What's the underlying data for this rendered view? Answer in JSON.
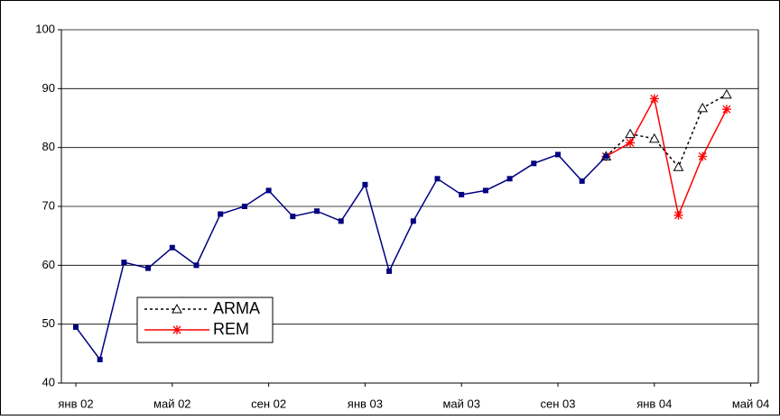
{
  "chart_data": {
    "type": "line",
    "categories": [
      "янв 02",
      null,
      null,
      null,
      "май 02",
      null,
      null,
      null,
      "сен 02",
      null,
      null,
      null,
      "янв 03",
      null,
      null,
      null,
      "май 03",
      null,
      null,
      null,
      "сен 03",
      null,
      null,
      null,
      "янв 04",
      null,
      null,
      null,
      "май 04"
    ],
    "series": [
      {
        "color": "#000080",
        "marker": "dot",
        "values": [
          49.5,
          44,
          60.5,
          59.5,
          63,
          60,
          68.7,
          70,
          72.7,
          68.3,
          69.2,
          67.5,
          73.7,
          59,
          67.5,
          74.7,
          72,
          72.7,
          74.7,
          77.3,
          78.8,
          74.3,
          78.5,
          null,
          null,
          null,
          null,
          null,
          null
        ]
      },
      {
        "name": "ARMA",
        "color": "#000000",
        "dash": true,
        "marker": "triangle",
        "values": [
          null,
          null,
          null,
          null,
          null,
          null,
          null,
          null,
          null,
          null,
          null,
          null,
          null,
          null,
          null,
          null,
          null,
          null,
          null,
          null,
          null,
          null,
          78.5,
          82.3,
          81.5,
          76.7,
          86.7,
          89,
          null
        ]
      },
      {
        "name": "REM",
        "color": "#ff0000",
        "dash": false,
        "marker": "star",
        "values": [
          null,
          null,
          null,
          null,
          null,
          null,
          null,
          null,
          null,
          null,
          null,
          null,
          null,
          null,
          null,
          null,
          null,
          null,
          null,
          null,
          null,
          null,
          78.5,
          80.8,
          88.3,
          68.5,
          78.5,
          86.5,
          null
        ]
      }
    ],
    "ylim": [
      40,
      100
    ],
    "yticks": [
      40,
      50,
      60,
      70,
      80,
      90,
      100
    ],
    "grid": true,
    "legend": "lower-left"
  }
}
